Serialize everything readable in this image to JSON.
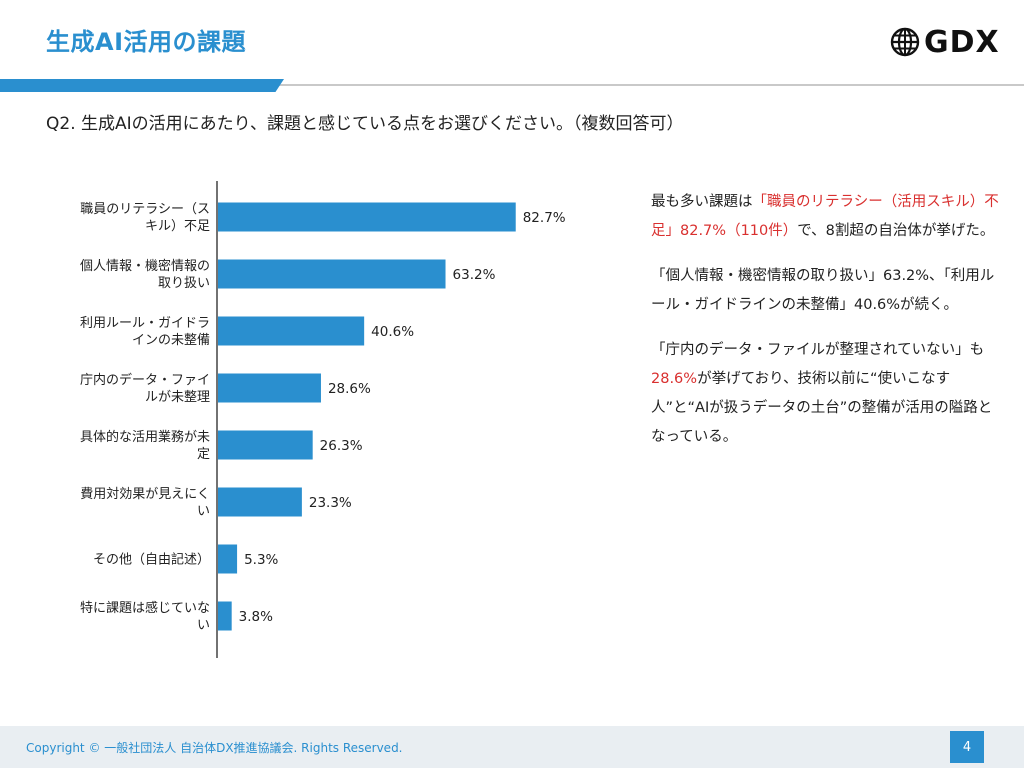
{
  "header": {
    "title": "生成AI活用の課題",
    "logo_text": "GDX",
    "logo_icon": "globe-icon",
    "accent_color": "#2a8fcf"
  },
  "question": "Q2. 生成AIの活用にあたり、課題と感じている点をお選びください。（複数回答可）",
  "chart_data": {
    "type": "bar",
    "orientation": "horizontal",
    "title": "",
    "xlabel": "",
    "ylabel": "",
    "xlim": [
      0,
      100
    ],
    "grid": false,
    "bar_color": "#2a8fcf",
    "categories": [
      [
        "職員のリテラシー（ス",
        "キル）不足"
      ],
      [
        "個人情報・機密情報の",
        "取り扱い"
      ],
      [
        "利用ルール・ガイドラ",
        "インの未整備"
      ],
      [
        "庁内のデータ・ファイ",
        "ルが未整理"
      ],
      [
        "具体的な活用業務が未",
        "定"
      ],
      [
        "費用対効果が見えにく",
        "い"
      ],
      [
        "その他（自由記述）"
      ],
      [
        "特に課題は感じていな",
        "い"
      ]
    ],
    "values": [
      82.7,
      63.2,
      40.6,
      28.6,
      26.3,
      23.3,
      5.3,
      3.8
    ],
    "value_labels": [
      "82.7%",
      "63.2%",
      "40.6%",
      "28.6%",
      "26.3%",
      "23.3%",
      "5.3%",
      "3.8%"
    ]
  },
  "commentary": {
    "p1_a": "最も多い課題は",
    "p1_hl": "「職員のリテラシー（活用スキル）不足」82.7%（110件）",
    "p1_b": "で、8割超の自治体が挙げた。",
    "p2": "「個人情報・機密情報の取り扱い」63.2%、「利用ルール・ガイドラインの未整備」40.6%が続く。",
    "p3_a": "「庁内のデータ・ファイルが整理されていない」も",
    "p3_hl": "28.6%",
    "p3_b": "が挙げており、技術以前に“使いこなす人”と“AIが扱うデータの土台”の整備が活用の隘路となっている。",
    "highlight_color": "#d9302f"
  },
  "footer": {
    "copyright": "Copyright © 一般社団法人 自治体DX推進協議会. Rights Reserved.",
    "page_number": "4"
  }
}
